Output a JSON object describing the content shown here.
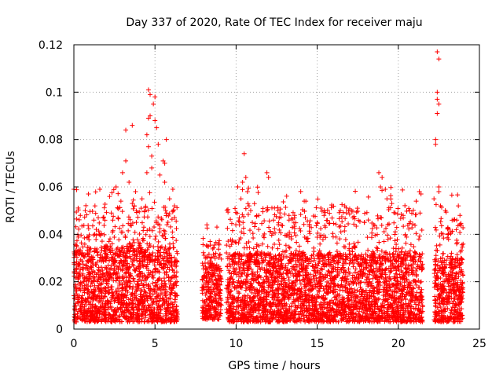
{
  "chart_data": {
    "type": "scatter",
    "title": "Day 337 of 2020, Rate Of TEC Index for receiver maju",
    "xlabel": "GPS time / hours",
    "ylabel": "ROTI / TECUs",
    "xlim": [
      0,
      25
    ],
    "ylim": [
      0,
      0.12
    ],
    "x_ticks": [
      0,
      5,
      10,
      15,
      20,
      25
    ],
    "x_tick_labels": [
      "0",
      "5",
      "10",
      "15",
      "20",
      "25"
    ],
    "y_ticks": [
      0,
      0.02,
      0.04,
      0.06,
      0.08,
      0.1,
      0.12
    ],
    "y_tick_labels": [
      "0",
      "0.02",
      "0.04",
      "0.06",
      "0.08",
      "0.1",
      "0.12"
    ],
    "grid": true,
    "marker": "+",
    "color": "#ff0000",
    "coverage_segments": [
      {
        "start": 0.0,
        "end": 6.4,
        "base": [
          0.003,
          0.035
        ],
        "peak": 0.06
      },
      {
        "start": 7.9,
        "end": 9.1,
        "base": [
          0.004,
          0.028
        ],
        "peak": 0.044
      },
      {
        "start": 9.4,
        "end": 21.5,
        "base": [
          0.003,
          0.032
        ],
        "peak": 0.06
      },
      {
        "start": 22.2,
        "end": 24.0,
        "base": [
          0.003,
          0.03
        ],
        "peak": 0.058
      }
    ],
    "series": [
      {
        "name": "ROTI",
        "points": [
          [
            4.6,
            0.101
          ],
          [
            4.7,
            0.099
          ],
          [
            5.0,
            0.098
          ],
          [
            4.9,
            0.095
          ],
          [
            4.7,
            0.09
          ],
          [
            4.6,
            0.089
          ],
          [
            5.0,
            0.088
          ],
          [
            5.1,
            0.085
          ],
          [
            3.2,
            0.084
          ],
          [
            3.6,
            0.086
          ],
          [
            4.5,
            0.082
          ],
          [
            5.7,
            0.08
          ],
          [
            4.6,
            0.077
          ],
          [
            5.2,
            0.078
          ],
          [
            4.8,
            0.073
          ],
          [
            5.5,
            0.071
          ],
          [
            5.6,
            0.07
          ],
          [
            4.8,
            0.068
          ],
          [
            3.2,
            0.071
          ],
          [
            3.0,
            0.066
          ],
          [
            4.5,
            0.066
          ],
          [
            5.3,
            0.065
          ],
          [
            3.4,
            0.062
          ],
          [
            2.6,
            0.06
          ],
          [
            1.6,
            0.059
          ],
          [
            0.9,
            0.057
          ],
          [
            2.2,
            0.056
          ],
          [
            3.8,
            0.058
          ],
          [
            5.6,
            0.062
          ],
          [
            6.1,
            0.059
          ],
          [
            5.9,
            0.055
          ],
          [
            2.9,
            0.054
          ],
          [
            1.3,
            0.052
          ],
          [
            0.7,
            0.05
          ],
          [
            6.2,
            0.052
          ],
          [
            0.0,
            0.059
          ],
          [
            0.4,
            0.048
          ],
          [
            3.6,
            0.053
          ],
          [
            4.2,
            0.055
          ],
          [
            1.8,
            0.047
          ],
          [
            2.4,
            0.046
          ],
          [
            8.2,
            0.044
          ],
          [
            10.1,
            0.06
          ],
          [
            10.5,
            0.074
          ],
          [
            10.6,
            0.064
          ],
          [
            10.4,
            0.062
          ],
          [
            10.7,
            0.058
          ],
          [
            10.3,
            0.055
          ],
          [
            10.8,
            0.052
          ],
          [
            11.9,
            0.066
          ],
          [
            12.0,
            0.064
          ],
          [
            10.9,
            0.05
          ],
          [
            11.4,
            0.048
          ],
          [
            12.7,
            0.049
          ],
          [
            13.6,
            0.047
          ],
          [
            14.2,
            0.054
          ],
          [
            14.3,
            0.054
          ],
          [
            10.2,
            0.047
          ],
          [
            11.0,
            0.045
          ],
          [
            12.3,
            0.046
          ],
          [
            16.7,
            0.052
          ],
          [
            16.8,
            0.049
          ],
          [
            17.2,
            0.047
          ],
          [
            17.9,
            0.045
          ],
          [
            18.8,
            0.066
          ],
          [
            19.0,
            0.064
          ],
          [
            18.9,
            0.06
          ],
          [
            19.2,
            0.059
          ],
          [
            19.3,
            0.055
          ],
          [
            19.6,
            0.053
          ],
          [
            20.3,
            0.048
          ],
          [
            20.7,
            0.05
          ],
          [
            21.3,
            0.058
          ],
          [
            21.1,
            0.054
          ],
          [
            19.8,
            0.049
          ],
          [
            15.0,
            0.045
          ],
          [
            15.5,
            0.043
          ],
          [
            22.4,
            0.117
          ],
          [
            22.5,
            0.114
          ],
          [
            22.4,
            0.1
          ],
          [
            22.4,
            0.097
          ],
          [
            22.5,
            0.095
          ],
          [
            22.4,
            0.091
          ],
          [
            22.3,
            0.08
          ],
          [
            22.3,
            0.078
          ],
          [
            22.5,
            0.06
          ],
          [
            22.5,
            0.058
          ],
          [
            22.6,
            0.052
          ],
          [
            22.9,
            0.05
          ],
          [
            23.7,
            0.052
          ],
          [
            23.8,
            0.048
          ],
          [
            23.6,
            0.046
          ],
          [
            22.2,
            0.055
          ],
          [
            21.4,
            0.057
          ]
        ]
      }
    ]
  }
}
